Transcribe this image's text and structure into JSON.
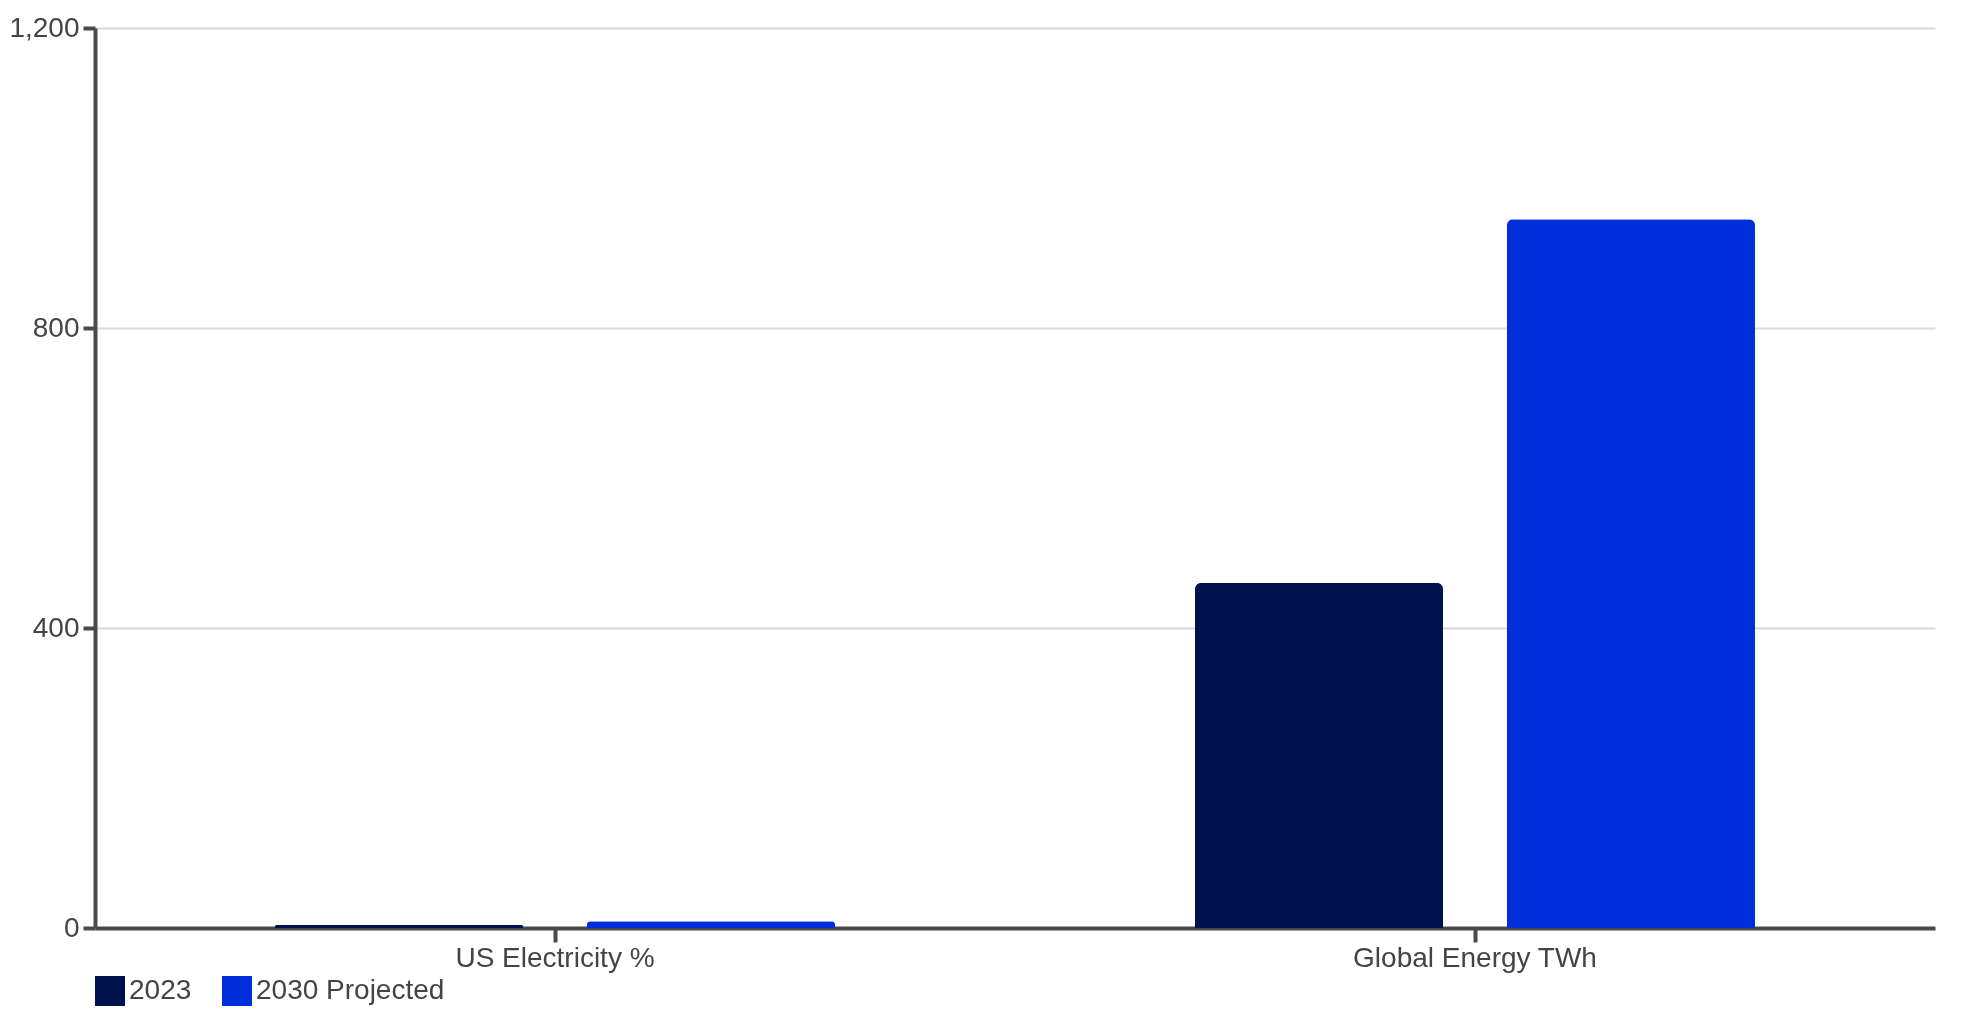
{
  "chart_data": {
    "type": "bar",
    "categories": [
      "US Electricity %",
      "Global Energy TWh"
    ],
    "series": [
      {
        "name": "2023",
        "color": "#00124d",
        "values": [
          4,
          460
        ]
      },
      {
        "name": "2030 Projected",
        "color": "#002edb",
        "values": [
          9,
          945
        ]
      }
    ],
    "ylim": [
      0,
      1200
    ],
    "yticks": [
      0,
      400,
      800,
      {
        "value": 1200,
        "label": "1,200"
      }
    ],
    "grid": "y",
    "legend": "bottom"
  }
}
